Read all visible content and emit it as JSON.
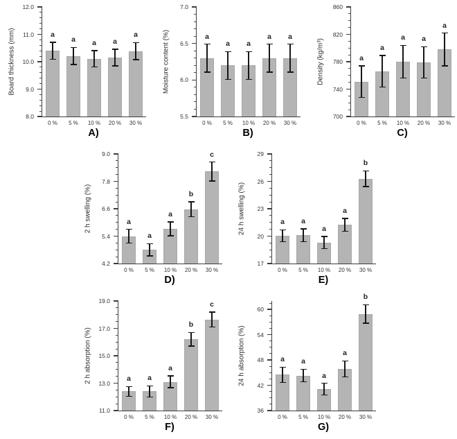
{
  "figure": {
    "background": "#ffffff"
  },
  "style": {
    "bar_fill": "#b4b4b4",
    "bar_border": "#a8a8a8",
    "axis_color": "#3c3c3c",
    "error_bar_color": "#161616",
    "tick_label_color": "#333333",
    "letter_color": "#222222",
    "panel_label_color": "#000000"
  },
  "chart_data": [
    {
      "id": "A",
      "type": "bar",
      "panel_label": "A)",
      "ylabel": "Board thickness (mm)",
      "categories": [
        "0 %",
        "5 %",
        "10 %",
        "20 %",
        "30 %"
      ],
      "values": [
        10.4,
        10.21,
        10.11,
        10.15,
        10.39
      ],
      "errors": [
        0.31,
        0.31,
        0.3,
        0.3,
        0.31
      ],
      "letters": [
        "a",
        "a",
        "a",
        "a",
        "a"
      ],
      "ylim": [
        8.0,
        12.0
      ],
      "yticks": [
        8.0,
        9.0,
        10.0,
        11.0,
        12.0
      ],
      "ytick_labels": [
        "8.0",
        "9.0",
        "10.0",
        "11.0",
        "12.0"
      ],
      "minor_per_major": 4,
      "grid": false,
      "legend": false
    },
    {
      "id": "B",
      "type": "bar",
      "panel_label": "B)",
      "ylabel": "Moisture content (%)",
      "categories": [
        "0 %",
        "5 %",
        "10 %",
        "20 %",
        "30 %"
      ],
      "values": [
        6.3,
        6.2,
        6.2,
        6.3,
        6.3
      ],
      "errors": [
        0.19,
        0.19,
        0.19,
        0.19,
        0.19
      ],
      "letters": [
        "a",
        "a",
        "a",
        "a",
        "a"
      ],
      "ylim": [
        5.5,
        7.0
      ],
      "yticks": [
        5.5,
        6.0,
        6.5,
        7.0
      ],
      "ytick_labels": [
        "5.5",
        "6.0",
        "6.5",
        "7.0"
      ],
      "minor_per_major": 4,
      "grid": false,
      "legend": false
    },
    {
      "id": "C",
      "type": "bar",
      "panel_label": "C)",
      "ylabel": "Density (kg/m³)",
      "categories": [
        "0 %",
        "5 %",
        "10 %",
        "20 %",
        "30 %"
      ],
      "values": [
        751,
        766,
        780,
        779,
        798
      ],
      "errors": [
        23,
        23,
        24,
        23,
        24
      ],
      "letters": [
        "a",
        "a",
        "a",
        "a",
        "a"
      ],
      "ylim": [
        700,
        860
      ],
      "yticks": [
        700,
        740,
        780,
        820,
        860
      ],
      "ytick_labels": [
        "700",
        "740",
        "780",
        "820",
        "860"
      ],
      "minor_per_major": 3,
      "grid": false,
      "legend": false
    },
    {
      "id": "D",
      "type": "bar",
      "panel_label": "D)",
      "ylabel": "2 h swelling (%)",
      "categories": [
        "0 %",
        "5 %",
        "10 %",
        "20 %",
        "30 %"
      ],
      "values": [
        5.4,
        4.8,
        5.72,
        6.58,
        8.23
      ],
      "errors": [
        0.3,
        0.27,
        0.3,
        0.33,
        0.42
      ],
      "letters": [
        "a",
        "a",
        "a",
        "b",
        "c"
      ],
      "ylim": [
        4.2,
        9.0
      ],
      "yticks": [
        4.2,
        5.4,
        6.6,
        7.8,
        9.0
      ],
      "ytick_labels": [
        "4.2",
        "5.4",
        "6.6",
        "7.8",
        "9.0"
      ],
      "minor_per_major": 3,
      "grid": false,
      "legend": false
    },
    {
      "id": "E",
      "type": "bar",
      "panel_label": "E)",
      "ylabel": "24 h swelling (%)",
      "categories": [
        "0 %",
        "5 %",
        "10 %",
        "20 %",
        "30 %"
      ],
      "values": [
        20.05,
        20.1,
        19.3,
        21.25,
        26.3
      ],
      "errors": [
        0.65,
        0.7,
        0.65,
        0.7,
        0.85
      ],
      "letters": [
        "a",
        "a",
        "a",
        "a",
        "b"
      ],
      "ylim": [
        17,
        29
      ],
      "yticks": [
        17,
        20,
        23,
        26,
        29
      ],
      "ytick_labels": [
        "17",
        "20",
        "23",
        "26",
        "29"
      ],
      "minor_per_major": 3,
      "grid": false,
      "legend": false
    },
    {
      "id": "F",
      "type": "bar",
      "panel_label": "F)",
      "ylabel": "2 h absorption (%)",
      "categories": [
        "0 %",
        "5 %",
        "10 %",
        "20 %",
        "30 %"
      ],
      "values": [
        12.4,
        12.4,
        13.1,
        16.2,
        17.65
      ],
      "errors": [
        0.35,
        0.4,
        0.42,
        0.5,
        0.55
      ],
      "letters": [
        "a",
        "a",
        "a",
        "b",
        "c"
      ],
      "ylim": [
        11.0,
        19.0
      ],
      "yticks": [
        11.0,
        13.0,
        15.0,
        17.0,
        19.0
      ],
      "ytick_labels": [
        "11.0",
        "13.0",
        "15.0",
        "17.0",
        "19.0"
      ],
      "minor_per_major": 3,
      "grid": false,
      "legend": false
    },
    {
      "id": "G",
      "type": "bar",
      "panel_label": "G)",
      "ylabel": "24 h absorption (%)",
      "categories": [
        "0 %",
        "5 %",
        "10 %",
        "20 %",
        "30 %"
      ],
      "values": [
        44.5,
        44.3,
        41.1,
        45.9,
        58.9
      ],
      "errors": [
        1.8,
        1.5,
        1.4,
        1.9,
        2.2
      ],
      "letters": [
        "a",
        "a",
        "a",
        "a",
        "b"
      ],
      "ylim": [
        36,
        62
      ],
      "yticks": [
        36,
        42,
        48,
        54,
        60
      ],
      "ytick_labels": [
        "36",
        "42",
        "48",
        "54",
        "60"
      ],
      "minor_per_major": 3,
      "grid": false,
      "legend": false
    }
  ]
}
